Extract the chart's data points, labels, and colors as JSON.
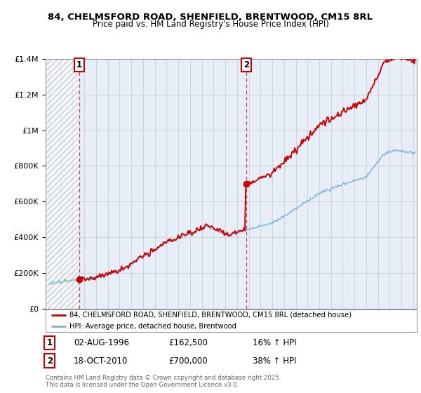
{
  "title1": "84, CHELMSFORD ROAD, SHENFIELD, BRENTWOOD, CM15 8RL",
  "title2": "Price paid vs. HM Land Registry's House Price Index (HPI)",
  "legend_line1": "84, CHELMSFORD ROAD, SHENFIELD, BRENTWOOD, CM15 8RL (detached house)",
  "legend_line2": "HPI: Average price, detached house, Brentwood",
  "marker1_label": "1",
  "marker1_date": "02-AUG-1996",
  "marker1_price": "£162,500",
  "marker1_hpi": "16% ↑ HPI",
  "marker1_year": 1996.59,
  "marker2_label": "2",
  "marker2_date": "18-OCT-2010",
  "marker2_price": "£700,000",
  "marker2_hpi": "38% ↑ HPI",
  "marker2_year": 2010.79,
  "footnote": "Contains HM Land Registry data © Crown copyright and database right 2025.\nThis data is licensed under the Open Government Licence v3.0.",
  "red_color": "#cc0000",
  "blue_color": "#7aafd4",
  "background_color": "#e8eef8",
  "grid_color": "#c8d0dc",
  "ylim_max": 1400000,
  "ylim_min": 0,
  "xlim_start": 1993.7,
  "xlim_end": 2025.3
}
